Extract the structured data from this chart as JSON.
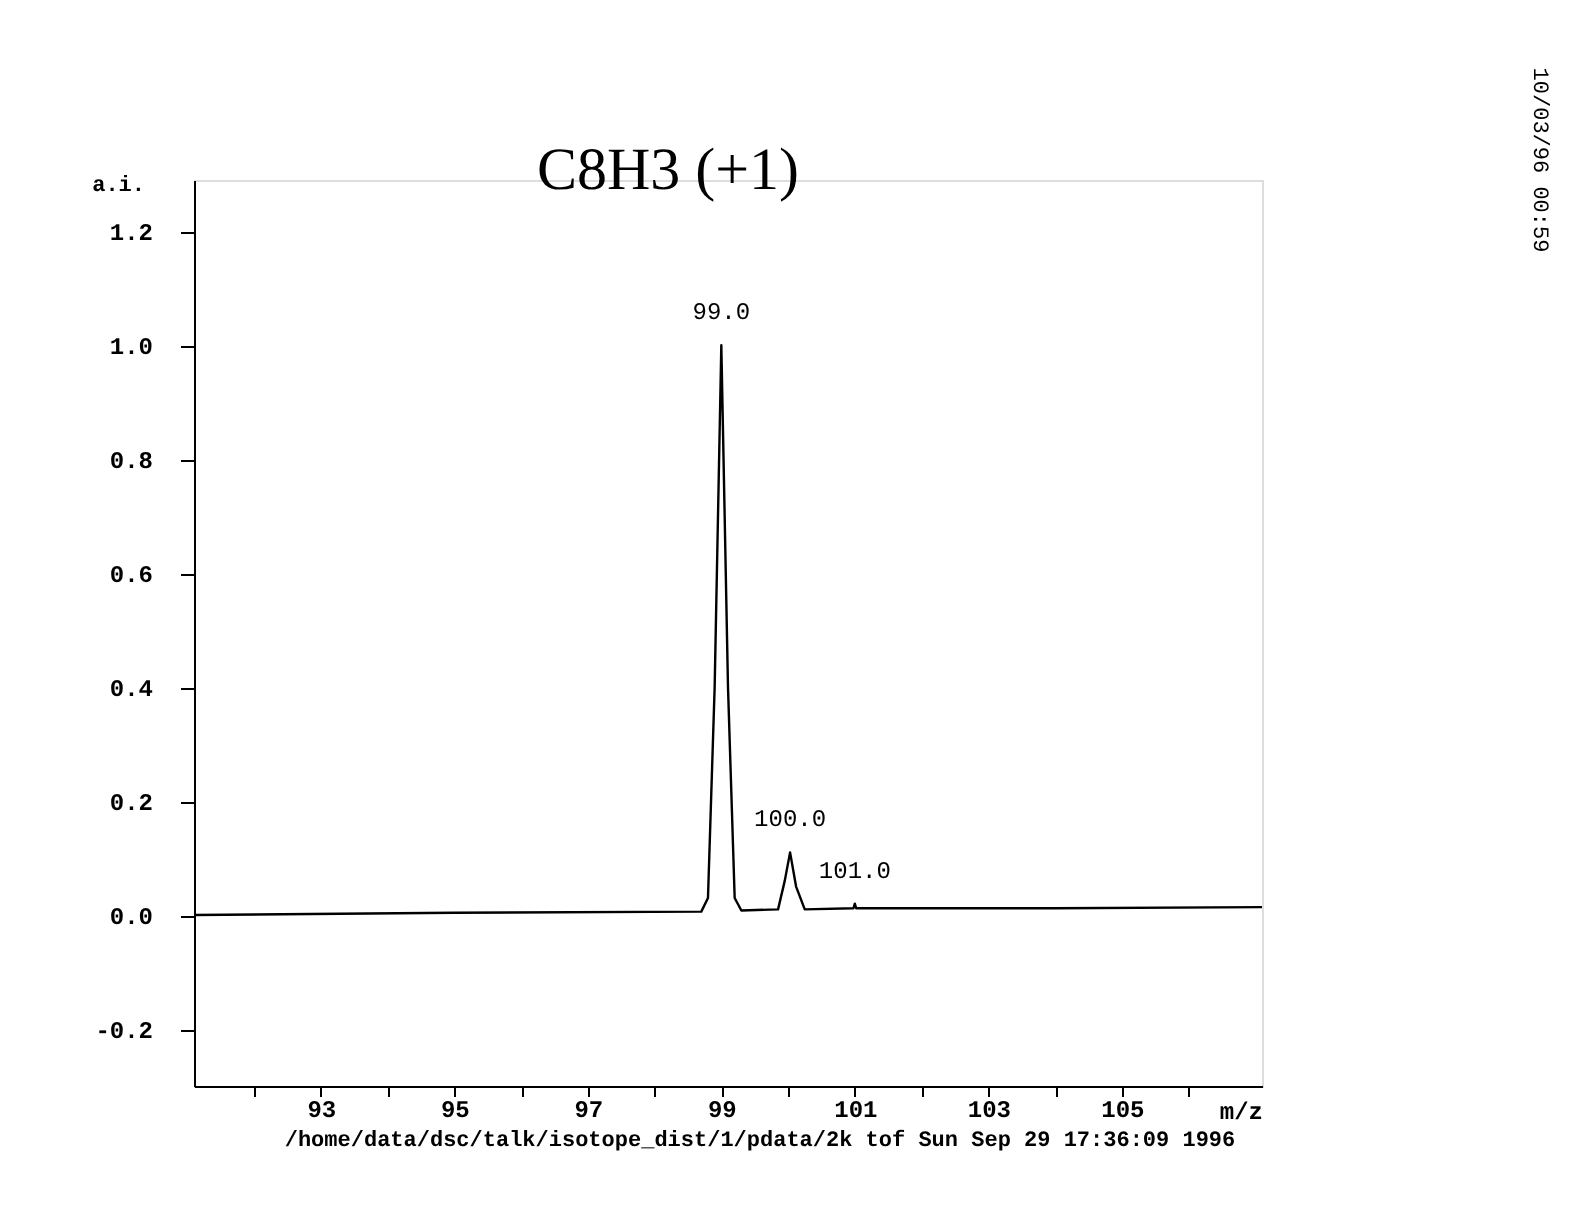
{
  "chart_data": {
    "type": "line",
    "title": "C8H3 (+1)",
    "xlabel": "m/z",
    "ylabel": "a.i.",
    "x": [
      91.1,
      95.0,
      98.7,
      98.8,
      98.9,
      99.0,
      99.1,
      99.2,
      99.3,
      99.85,
      99.95,
      100.03,
      100.12,
      100.25,
      100.98,
      101.0,
      101.02,
      104.0,
      107.1
    ],
    "series": [
      {
        "color": "#000000",
        "values": [
          0.0,
          0.004,
          0.006,
          0.03,
          0.4,
          1.0,
          0.4,
          0.03,
          0.008,
          0.01,
          0.06,
          0.11,
          0.05,
          0.01,
          0.012,
          0.02,
          0.012,
          0.012,
          0.014
        ]
      }
    ],
    "xlim": [
      91.1,
      107.1
    ],
    "xticks": [
      {
        "value": 92,
        "label": null
      },
      93,
      {
        "value": 94,
        "label": null
      },
      95,
      {
        "value": 96,
        "label": null
      },
      97,
      {
        "value": 98,
        "label": null
      },
      99,
      {
        "value": 100,
        "label": null
      },
      101,
      {
        "value": 102,
        "label": null
      },
      103,
      {
        "value": 104,
        "label": null
      },
      105,
      {
        "value": 106,
        "label": null
      }
    ],
    "ylim": [
      -0.3,
      1.29
    ],
    "yticks": [
      {
        "value": -0.2,
        "label": "-0.2"
      },
      {
        "value": 0,
        "label": "0.0"
      },
      {
        "value": 0.2,
        "label": "0.2"
      },
      {
        "value": 0.4,
        "label": "0.4"
      },
      {
        "value": 0.6,
        "label": "0.6"
      },
      {
        "value": 0.8,
        "label": "0.8"
      },
      {
        "value": 1.0,
        "label": "1.0"
      },
      {
        "value": 1.2,
        "label": "1.2"
      }
    ],
    "grid": false,
    "marker": "none",
    "line_style": "solid",
    "annotations": [
      {
        "text": "99.0",
        "x": 99.0,
        "y": 1.0
      },
      {
        "text": "100.0",
        "x": 100.03,
        "y": 0.11
      },
      {
        "text": "101.0",
        "x": 101.0,
        "y": 0.02
      },
      "/home/data/dsc/talk/isotope_dist/1/pdata/2k   tof   Sun Sep 29 17:36:09 1996",
      "10/03/96  00:59"
    ]
  }
}
